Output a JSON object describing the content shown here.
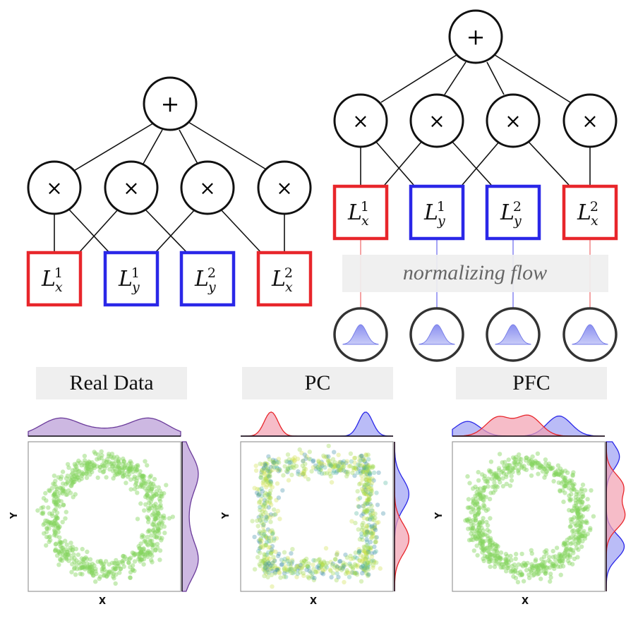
{
  "left_circuit": {
    "sum_symbol": "+",
    "product_symbol": "×",
    "leaves": [
      {
        "base": "L",
        "sub": "x",
        "sup": "1",
        "color": "#e8262b"
      },
      {
        "base": "L",
        "sub": "y",
        "sup": "1",
        "color": "#2a27e8"
      },
      {
        "base": "L",
        "sub": "y",
        "sup": "2",
        "color": "#2a27e8"
      },
      {
        "base": "L",
        "sub": "x",
        "sup": "2",
        "color": "#e8262b"
      }
    ]
  },
  "right_circuit": {
    "sum_symbol": "+",
    "product_symbol": "×",
    "leaves": [
      {
        "base": "L",
        "sub": "x",
        "sup": "1",
        "color": "#e8262b"
      },
      {
        "base": "L",
        "sub": "y",
        "sup": "1",
        "color": "#2a27e8"
      },
      {
        "base": "L",
        "sub": "y",
        "sup": "2",
        "color": "#2a27e8"
      },
      {
        "base": "L",
        "sub": "x",
        "sup": "2",
        "color": "#e8262b"
      }
    ],
    "flow_label": "normalizing flow",
    "base_distribution_icon": "gaussian-bell-icon"
  },
  "panels": [
    {
      "title": "Real Data",
      "xlabel": "X",
      "ylabel": "Y",
      "shape": "ring",
      "top_marginal": "bimodal-purple",
      "right_marginal": "bimodal-purple"
    },
    {
      "title": "PC",
      "xlabel": "X",
      "ylabel": "Y",
      "shape": "square",
      "top_marginal": "two-peaks-red-blue",
      "right_marginal": "two-peaks-blue-red"
    },
    {
      "title": "PFC",
      "xlabel": "X",
      "ylabel": "Y",
      "shape": "ring",
      "top_marginal": "overlapping-red-blue",
      "right_marginal": "overlapping-red-blue"
    }
  ],
  "colors": {
    "red": "#e8262b",
    "blue": "#2a27e8",
    "purple": "#6a3a9a",
    "points": "#7fd05a",
    "banner": "#efefef"
  }
}
